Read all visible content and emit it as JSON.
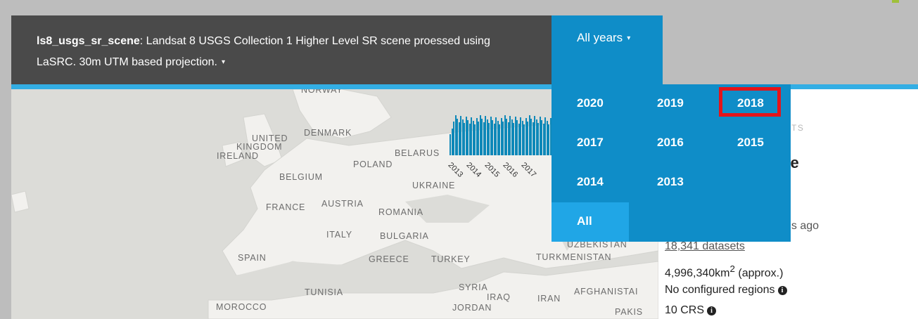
{
  "product": {
    "name": "ls8_usgs_sr_scene",
    "description": ": Landsat 8 USGS Collection 1 Higher Level SR scene proessed using LaSRC. 30m UTM based projection.",
    "caret": "▾"
  },
  "year_selector": {
    "label": "All years",
    "caret": "▾",
    "options": [
      "2020",
      "2019",
      "2018",
      "2017",
      "2016",
      "2015",
      "2014",
      "2013"
    ],
    "all_label": "All",
    "highlighted": "2018"
  },
  "histogram": {
    "labels": [
      "2013",
      "2014",
      "2015",
      "2016",
      "2017"
    ]
  },
  "map_labels": {
    "norway": "NORWAY",
    "united_kingdom_1": "UNITED",
    "united_kingdom_2": "KINGDOM",
    "ireland": "IRELAND",
    "denmark": "DENMARK",
    "belarus": "BELARUS",
    "poland": "POLAND",
    "belgium": "BELGIUM",
    "ukraine": "UKRAINE",
    "france": "FRANCE",
    "austria": "AUSTRIA",
    "romania": "ROMANIA",
    "italy": "ITALY",
    "bulgaria": "BULGARIA",
    "spain": "SPAIN",
    "greece": "GREECE",
    "turkey": "TURKEY",
    "uzbekistan": "UZBEKISTAN",
    "turkmenistan": "TURKMENISTAN",
    "tunisia": "TUNISIA",
    "syria": "SYRIA",
    "iraq": "IRAQ",
    "iran": "IRAN",
    "afghanistan": "AFGHANISTAI",
    "morocco": "MOROCCO",
    "jordan": "JORDAN",
    "pakistan": "PAKIS"
  },
  "side_panel": {
    "heading": "SETS",
    "title": "ne",
    "updated": "ns ago",
    "datasets_link": "18,341 datasets",
    "area_value": "4,996,340km",
    "area_sup": "2",
    "area_suffix": " (approx.)",
    "regions": "No configured regions",
    "crs": "10 CRS",
    "info_glyph": "i"
  }
}
